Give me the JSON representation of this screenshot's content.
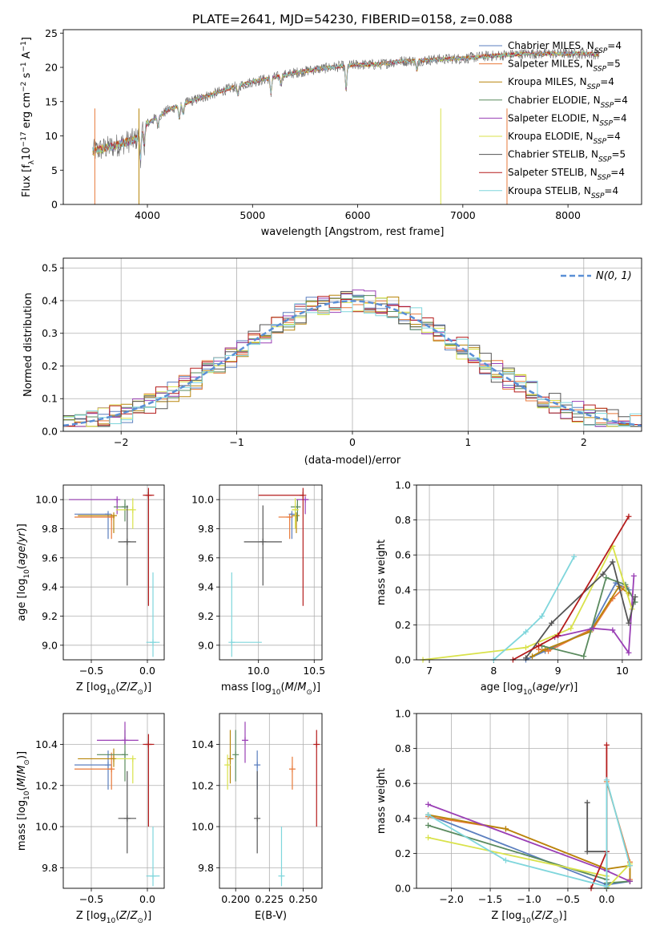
{
  "figure": {
    "title": "PLATE=2641, MJD=54230, FIBERID=0158, z=0.088"
  },
  "models": [
    {
      "label": "Chabrier MILES, N_SSP=4",
      "color": "#5b7fbf"
    },
    {
      "label": "Salpeter MILES, N_SSP=5",
      "color": "#e8793a"
    },
    {
      "label": "Kroupa MILES, N_SSP=4",
      "color": "#b8860b"
    },
    {
      "label": "Chabrier ELODIE, N_SSP=4",
      "color": "#5a8a5e"
    },
    {
      "label": "Salpeter ELODIE, N_SSP=4",
      "color": "#9a3fb5"
    },
    {
      "label": "Kroupa ELODIE, N_SSP=4",
      "color": "#d9e24a"
    },
    {
      "label": "Chabrier STELIB, N_SSP=5",
      "color": "#555555"
    },
    {
      "label": "Salpeter STELIB, N_SSP=4",
      "color": "#b51c1c"
    },
    {
      "label": "Kroupa STELIB, N_SSP=4",
      "color": "#7fd6dc"
    }
  ],
  "chart_data": [
    {
      "id": "spectrum",
      "type": "line",
      "xlabel": "wavelength [Angstrom, rest frame]",
      "ylabel": "Flux [f_λ 10^-17 erg cm^-2 s^-1 A^-1]",
      "xlim": [
        3200,
        8700
      ],
      "ylim": [
        0,
        25.5
      ],
      "xticks": [
        4000,
        5000,
        6000,
        7000,
        8000
      ],
      "yticks": [
        0,
        5,
        10,
        15,
        20,
        25
      ],
      "grid": false,
      "legend": "right",
      "continuum": {
        "x": [
          3500,
          3700,
          3900,
          4000,
          4100,
          4200,
          4400,
          4600,
          4800,
          5000,
          5200,
          5400,
          5600,
          5800,
          6000,
          6200,
          6400,
          6600,
          6800,
          7000,
          7200,
          7400,
          7600,
          7800,
          8000,
          8200,
          8300
        ],
        "y": [
          7.8,
          8.6,
          9.6,
          11.8,
          12.8,
          13.8,
          15.0,
          16.0,
          17.0,
          17.9,
          18.5,
          19.2,
          19.7,
          20.1,
          20.4,
          20.4,
          20.9,
          21.0,
          21.2,
          21.3,
          21.6,
          21.8,
          22.0,
          22.0,
          22.0,
          22.0,
          21.9
        ]
      }
    },
    {
      "id": "residuals",
      "type": "histogram",
      "xlabel": "(data-model)/error",
      "ylabel": "Normed distribution",
      "xlim": [
        -2.5,
        2.5
      ],
      "ylim": [
        0,
        0.53
      ],
      "xticks": [
        -2,
        -1,
        0,
        1,
        2
      ],
      "yticks": [
        0.0,
        0.1,
        0.2,
        0.3,
        0.4,
        0.5
      ],
      "grid": true,
      "legend": "top-right",
      "reference_label": "N(0, 1)",
      "bin_edges": [
        -2.5,
        -2.4,
        -2.3,
        -2.2,
        -2.1,
        -2.0,
        -1.9,
        -1.8,
        -1.7,
        -1.6,
        -1.5,
        -1.4,
        -1.3,
        -1.2,
        -1.1,
        -1.0,
        -0.9,
        -0.8,
        -0.7,
        -0.6,
        -0.5,
        -0.4,
        -0.3,
        -0.2,
        -0.1,
        0.0,
        0.1,
        0.2,
        0.3,
        0.4,
        0.5,
        0.6,
        0.7,
        0.8,
        0.9,
        1.0,
        1.1,
        1.2,
        1.3,
        1.4,
        1.5,
        1.6,
        1.7,
        1.8,
        1.9,
        2.0,
        2.1,
        2.2,
        2.3,
        2.4,
        2.5
      ]
    },
    {
      "id": "age-vs-Z",
      "type": "scatter",
      "xlabel": "Z [log10(Z/Z⊙)]",
      "ylabel": "age [log10(age/yr)]",
      "xlim": [
        -0.75,
        0.15
      ],
      "ylim": [
        8.9,
        10.1
      ],
      "xticks": [
        -0.5,
        0.0
      ],
      "yticks": [
        9.0,
        9.2,
        9.4,
        9.6,
        9.8,
        10.0
      ],
      "grid": true,
      "points": [
        {
          "x": -0.35,
          "y": 9.9,
          "xerr": [
            0.3,
            0.0
          ],
          "yerr": [
            0.17,
            0.0
          ]
        },
        {
          "x": -0.32,
          "y": 9.88,
          "xerr": [
            0.33,
            0.0
          ],
          "yerr": [
            0.15,
            0.0
          ]
        },
        {
          "x": -0.3,
          "y": 9.89,
          "xerr": [
            0.32,
            0.0
          ],
          "yerr": [
            0.12,
            0.0
          ]
        },
        {
          "x": -0.2,
          "y": 9.95,
          "xerr": [
            0.1,
            0.0
          ],
          "yerr": [
            0.1,
            0.05
          ]
        },
        {
          "x": -0.27,
          "y": 10.0,
          "xerr": [
            0.43,
            0.0
          ],
          "yerr": [
            0.1,
            0.0
          ]
        },
        {
          "x": -0.13,
          "y": 9.93,
          "xerr": [
            0.15,
            0.0
          ],
          "yerr": [
            0.13,
            0.08
          ]
        },
        {
          "x": -0.18,
          "y": 9.71,
          "xerr": [
            0.08,
            0.08
          ],
          "yerr": [
            0.3,
            0.25
          ]
        },
        {
          "x": 0.01,
          "y": 10.03,
          "xerr": [
            0.05,
            0.05
          ],
          "yerr": [
            0.76,
            0.05
          ]
        },
        {
          "x": 0.05,
          "y": 9.02,
          "xerr": [
            0.06,
            0.06
          ],
          "yerr": [
            0.1,
            0.48
          ]
        }
      ]
    },
    {
      "id": "age-vs-mass",
      "type": "scatter",
      "xlabel": "mass [log10(M/M⊙)]",
      "ylabel": "",
      "xlim": [
        9.65,
        10.57
      ],
      "ylim": [
        8.9,
        10.1
      ],
      "xticks": [
        10.0,
        10.5
      ],
      "yticks": [
        9.0,
        9.2,
        9.4,
        9.6,
        9.8,
        10.0
      ],
      "grid": true,
      "points": [
        {
          "x": 10.3,
          "y": 9.9,
          "xerr": [
            0.02,
            0.0
          ],
          "yerr": [
            0.17,
            0.0
          ]
        },
        {
          "x": 10.28,
          "y": 9.88,
          "xerr": [
            0.1,
            0.0
          ],
          "yerr": [
            0.15,
            0.0
          ]
        },
        {
          "x": 10.34,
          "y": 9.89,
          "xerr": [
            0.04,
            0.0
          ],
          "yerr": [
            0.12,
            0.0
          ]
        },
        {
          "x": 10.35,
          "y": 9.95,
          "xerr": [
            0.06,
            0.0
          ],
          "yerr": [
            0.1,
            0.05
          ]
        },
        {
          "x": 10.42,
          "y": 10.0,
          "xerr": [
            0.08,
            0.03
          ],
          "yerr": [
            0.1,
            0.0
          ]
        },
        {
          "x": 10.33,
          "y": 9.93,
          "xerr": [
            0.03,
            0.03
          ],
          "yerr": [
            0.13,
            0.08
          ]
        },
        {
          "x": 10.04,
          "y": 9.71,
          "xerr": [
            0.17,
            0.17
          ],
          "yerr": [
            0.3,
            0.25
          ]
        },
        {
          "x": 10.4,
          "y": 10.03,
          "xerr": [
            0.4,
            0.0
          ],
          "yerr": [
            0.76,
            0.05
          ]
        },
        {
          "x": 9.76,
          "y": 9.02,
          "xerr": [
            0.0,
            0.27
          ],
          "yerr": [
            0.1,
            0.48
          ]
        }
      ]
    },
    {
      "id": "weight-vs-age",
      "type": "line",
      "xlabel": "age [log10(age/yr)]",
      "ylabel": "mass weight",
      "xlim": [
        6.8,
        10.3
      ],
      "ylim": [
        0,
        1.0
      ],
      "xticks": [
        7,
        8,
        9,
        10
      ],
      "yticks": [
        0.0,
        0.2,
        0.4,
        0.6,
        0.8,
        1.0
      ],
      "grid": true,
      "series": [
        {
          "x": [
            8.5,
            8.8,
            9.5,
            9.9,
            10.1
          ],
          "y": [
            0.0,
            0.05,
            0.17,
            0.44,
            0.4
          ]
        },
        {
          "x": [
            8.7,
            8.85,
            9.55,
            9.85,
            10.05
          ],
          "y": [
            0.06,
            0.05,
            0.18,
            0.35,
            0.42
          ]
        },
        {
          "x": [
            8.6,
            8.8,
            9.5,
            9.95,
            10.1
          ],
          "y": [
            0.02,
            0.06,
            0.16,
            0.42,
            0.38
          ]
        },
        {
          "x": [
            8.75,
            9.4,
            9.75,
            10.05,
            10.2
          ],
          "y": [
            0.08,
            0.02,
            0.47,
            0.43,
            0.33
          ]
        },
        {
          "x": [
            8.95,
            9.55,
            9.85,
            10.1,
            10.18
          ],
          "y": [
            0.13,
            0.18,
            0.17,
            0.04,
            0.48
          ]
        },
        {
          "x": [
            6.9,
            8.5,
            9.2,
            9.85,
            10.15
          ],
          "y": [
            0.0,
            0.07,
            0.18,
            0.65,
            0.29
          ]
        },
        {
          "x": [
            8.5,
            8.9,
            9.7,
            9.85,
            10.1,
            10.2
          ],
          "y": [
            0.01,
            0.21,
            0.49,
            0.56,
            0.21,
            0.36
          ]
        },
        {
          "x": [
            8.3,
            8.7,
            9.0,
            10.1
          ],
          "y": [
            0.0,
            0.08,
            0.14,
            0.82
          ]
        },
        {
          "x": [
            8.0,
            8.5,
            8.75,
            9.25
          ],
          "y": [
            0.0,
            0.16,
            0.25,
            0.59
          ]
        }
      ]
    },
    {
      "id": "mass-vs-Z",
      "type": "scatter",
      "xlabel": "Z [log10(Z/Z⊙)]",
      "ylabel": "mass [log10(M/M⊙)]",
      "xlim": [
        -0.75,
        0.15
      ],
      "ylim": [
        9.7,
        10.55
      ],
      "xticks": [
        -0.5,
        0.0
      ],
      "yticks": [
        9.8,
        10.0,
        10.2,
        10.4
      ],
      "grid": true,
      "points": [
        {
          "x": -0.35,
          "y": 10.3,
          "xerr": [
            0.3,
            0.0
          ],
          "yerr": [
            0.12,
            0.07
          ]
        },
        {
          "x": -0.32,
          "y": 10.28,
          "xerr": [
            0.33,
            0.0
          ],
          "yerr": [
            0.1,
            0.08
          ]
        },
        {
          "x": -0.3,
          "y": 10.33,
          "xerr": [
            0.32,
            0.0
          ],
          "yerr": [
            0.04,
            0.05
          ]
        },
        {
          "x": -0.2,
          "y": 10.35,
          "xerr": [
            0.25,
            0.0
          ],
          "yerr": [
            0.13,
            0.12
          ]
        },
        {
          "x": -0.2,
          "y": 10.42,
          "xerr": [
            0.25,
            0.12
          ],
          "yerr": [
            0.02,
            0.09
          ]
        },
        {
          "x": -0.13,
          "y": 10.33,
          "xerr": [
            0.15,
            0.0
          ],
          "yerr": [
            0.12,
            0.0
          ]
        },
        {
          "x": -0.18,
          "y": 10.04,
          "xerr": [
            0.08,
            0.08
          ],
          "yerr": [
            0.17,
            0.23
          ]
        },
        {
          "x": 0.01,
          "y": 10.4,
          "xerr": [
            0.05,
            0.05
          ],
          "yerr": [
            0.4,
            0.05
          ]
        },
        {
          "x": 0.05,
          "y": 9.76,
          "xerr": [
            0.06,
            0.06
          ],
          "yerr": [
            0.05,
            0.24
          ]
        }
      ]
    },
    {
      "id": "mass-vs-EBV",
      "type": "scatter",
      "xlabel": "E(B-V)",
      "ylabel": "",
      "xlim": [
        0.188,
        0.264
      ],
      "ylim": [
        9.7,
        10.55
      ],
      "xticks": [
        0.2,
        0.225,
        0.25
      ],
      "yticks": [
        9.8,
        10.0,
        10.2,
        10.4
      ],
      "grid": true,
      "points": [
        {
          "x": 0.216,
          "y": 10.3,
          "xerr": [
            0.0,
            0.0
          ],
          "yerr": [
            0.12,
            0.07
          ]
        },
        {
          "x": 0.242,
          "y": 10.28,
          "xerr": [
            0.0,
            0.0
          ],
          "yerr": [
            0.1,
            0.06
          ]
        },
        {
          "x": 0.196,
          "y": 10.33,
          "xerr": [
            0.0,
            0.0
          ],
          "yerr": [
            0.12,
            0.14
          ]
        },
        {
          "x": 0.2,
          "y": 10.35,
          "xerr": [
            0.0,
            0.0
          ],
          "yerr": [
            0.13,
            0.12
          ]
        },
        {
          "x": 0.207,
          "y": 10.42,
          "xerr": [
            0.0,
            0.0
          ],
          "yerr": [
            0.11,
            0.09
          ]
        },
        {
          "x": 0.194,
          "y": 10.3,
          "xerr": [
            0.0,
            0.0
          ],
          "yerr": [
            0.12,
            0.05
          ]
        },
        {
          "x": 0.216,
          "y": 10.04,
          "xerr": [
            0.0,
            0.0
          ],
          "yerr": [
            0.17,
            0.23
          ]
        },
        {
          "x": 0.26,
          "y": 10.4,
          "xerr": [
            0.0,
            0.0
          ],
          "yerr": [
            0.4,
            0.07
          ]
        },
        {
          "x": 0.234,
          "y": 9.76,
          "xerr": [
            0.0,
            0.0
          ],
          "yerr": [
            0.05,
            0.24
          ]
        }
      ]
    },
    {
      "id": "weight-vs-Z",
      "type": "line",
      "xlabel": "Z [log10(Z/Z⊙)]",
      "ylabel": "mass weight",
      "xlim": [
        -2.45,
        0.45
      ],
      "ylim": [
        0,
        1.0
      ],
      "xticks": [
        -2.0,
        -1.5,
        -1.0,
        -0.5,
        0.0
      ],
      "yticks": [
        0.0,
        0.2,
        0.4,
        0.6,
        0.8,
        1.0
      ],
      "grid": true,
      "series": [
        {
          "x": [
            -2.3,
            0.0,
            0.3
          ],
          "y": [
            0.42,
            0.02,
            0.04
          ]
        },
        {
          "x": [
            -2.3,
            -1.3,
            0.0,
            0.0,
            0.3,
            0.3
          ],
          "y": [
            0.41,
            0.34,
            0.11,
            0.61,
            0.15,
            0.05
          ]
        },
        {
          "x": [
            -2.3,
            -1.3,
            0.0,
            0.3,
            0.3
          ],
          "y": [
            0.42,
            0.34,
            0.11,
            0.13,
            0.04
          ]
        },
        {
          "x": [
            -2.3,
            0.0,
            0.0,
            0.3
          ],
          "y": [
            0.36,
            0.05,
            0.03,
            0.04
          ]
        },
        {
          "x": [
            -2.3,
            0.0,
            0.3
          ],
          "y": [
            0.48,
            0.1,
            0.04
          ]
        },
        {
          "x": [
            -2.3,
            0.0,
            0.0,
            0.3
          ],
          "y": [
            0.29,
            0.07,
            0.0,
            0.14
          ]
        },
        {
          "x": [
            -0.25,
            -0.25,
            0.0,
            0.0
          ],
          "y": [
            0.49,
            0.21,
            0.21,
            0.0
          ]
        },
        {
          "x": [
            -0.2,
            0.0,
            0.0
          ],
          "y": [
            0.0,
            0.21,
            0.82
          ]
        },
        {
          "x": [
            -2.3,
            -1.3,
            0.0,
            0.0,
            0.3
          ],
          "y": [
            0.42,
            0.16,
            0.01,
            0.62,
            0.13
          ]
        }
      ]
    }
  ]
}
